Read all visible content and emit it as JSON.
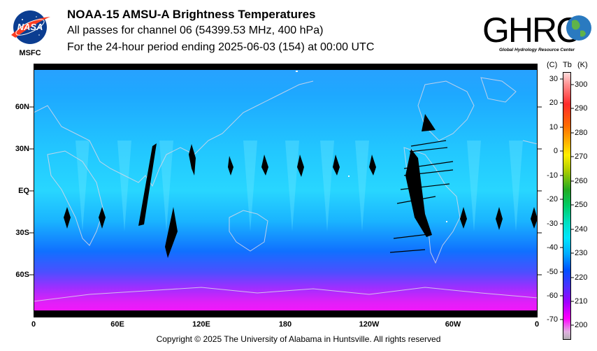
{
  "header": {
    "title": "NOAA-15 AMSU-A Brightness Temperatures",
    "subtitle": "All passes for channel 06 (54399.53 MHz, 400 hPa)",
    "period": "For the 24-hour period ending 2025-06-03 (154) at 00:00 UTC"
  },
  "logos": {
    "nasa_text": "NASA",
    "msfc_label": "MSFC",
    "ghrc_text": "GHRC",
    "ghrc_subtitle": "Global Hydrology Resource Center"
  },
  "map": {
    "lat_labels": [
      "60N",
      "30N",
      "EQ",
      "30S",
      "60S"
    ],
    "lon_labels": [
      "0",
      "60E",
      "120E",
      "180",
      "120W",
      "60W",
      "0"
    ]
  },
  "colorbar": {
    "unit_c": "(C)",
    "unit_tb": "Tb",
    "unit_k": "(K)",
    "celsius_ticks": [
      "30",
      "20",
      "10",
      "0",
      "-10",
      "-20",
      "-30",
      "-40",
      "-50",
      "-60",
      "-70"
    ],
    "kelvin_ticks": [
      "300",
      "290",
      "280",
      "270",
      "260",
      "250",
      "240",
      "230",
      "220",
      "210",
      "200"
    ],
    "colors": [
      "#ff8c8c",
      "#ff2000",
      "#ff9900",
      "#ffff00",
      "#22aa22",
      "#00cc55",
      "#00e5ff",
      "#00aaff",
      "#0040ff",
      "#a000ff",
      "#ff00ff",
      "#b0b0b0"
    ]
  },
  "footer": {
    "copyright": "Copyright © 2025 The University of Alabama in Huntsville.  All rights reserved"
  }
}
